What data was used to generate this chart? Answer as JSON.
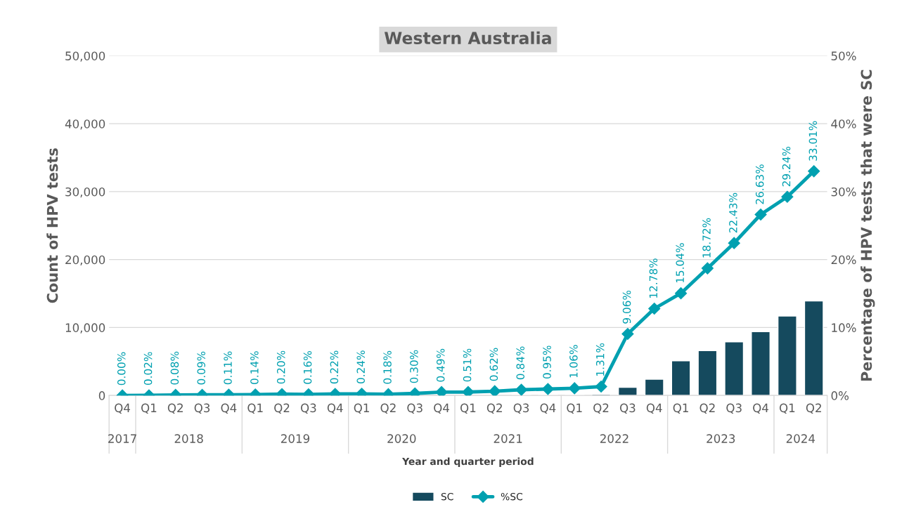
{
  "chart_data": {
    "type": "bar",
    "title": "Western Australia",
    "xlabel": "Year and quarter period",
    "ylabel": "Count of HPV tests",
    "y2label": "Percentage of HPV tests that were SC",
    "categories": [
      "Q4",
      "Q1",
      "Q2",
      "Q3",
      "Q4",
      "Q1",
      "Q2",
      "Q3",
      "Q4",
      "Q1",
      "Q2",
      "Q3",
      "Q4",
      "Q1",
      "Q2",
      "Q3",
      "Q4",
      "Q1",
      "Q2",
      "Q3",
      "Q4",
      "Q1",
      "Q2",
      "Q3",
      "Q4",
      "Q1",
      "Q2"
    ],
    "annotations": [
      "2017",
      "2018",
      "2019",
      "2020",
      "2021",
      "2022",
      "2023",
      "2024"
    ],
    "series": [
      {
        "name": "SC",
        "color": "#154a5e",
        "values": [
          null,
          null,
          null,
          null,
          null,
          null,
          null,
          null,
          null,
          null,
          null,
          null,
          null,
          null,
          null,
          100,
          100,
          100,
          200,
          1200,
          2400,
          5100,
          6600,
          7900,
          9400,
          11700,
          13900
        ]
      },
      {
        "name": "%SC",
        "type": "line",
        "axis": "y2",
        "color": "#00a0b0",
        "marker": "diamond",
        "line_style": "solid",
        "values": [
          0.0,
          0.02,
          0.08,
          0.09,
          0.11,
          0.14,
          0.2,
          0.16,
          0.22,
          0.24,
          0.18,
          0.3,
          0.49,
          0.51,
          0.62,
          0.84,
          0.95,
          1.06,
          1.31,
          9.06,
          12.78,
          15.04,
          18.72,
          22.43,
          26.63,
          29.24,
          33.01
        ],
        "value_labels": [
          "0.00%",
          "0.02%",
          "0.08%",
          "0.09%",
          "0.11%",
          "0.14%",
          "0.20%",
          "0.16%",
          "0.22%",
          "0.24%",
          "0.18%",
          "0.30%",
          "0.49%",
          "0.51%",
          "0.62%",
          "0.84%",
          "0.95%",
          "1.06%",
          "1.31%",
          "9.06%",
          "12.78%",
          "15.04%",
          "18.72%",
          "22.43%",
          "26.63%",
          "29.24%",
          "33.01%"
        ]
      }
    ],
    "ylim": [
      0,
      50000
    ],
    "yticks": [
      {
        "value": 0,
        "label": "0"
      },
      {
        "value": 10000,
        "label": "10,000"
      },
      {
        "value": 20000,
        "label": "20,000"
      },
      {
        "value": 30000,
        "label": "30,000"
      },
      {
        "value": 40000,
        "label": "40,000"
      },
      {
        "value": 50000,
        "label": "50,000"
      }
    ],
    "y2lim": [
      0,
      50
    ],
    "y2ticks": [
      {
        "value": 0,
        "label": "0%"
      },
      {
        "value": 10,
        "label": "10%"
      },
      {
        "value": 20,
        "label": "20%"
      },
      {
        "value": 30,
        "label": "30%"
      },
      {
        "value": 40,
        "label": "40%"
      },
      {
        "value": 50,
        "label": "50%"
      }
    ],
    "grid": "y",
    "legend": "bottom"
  }
}
